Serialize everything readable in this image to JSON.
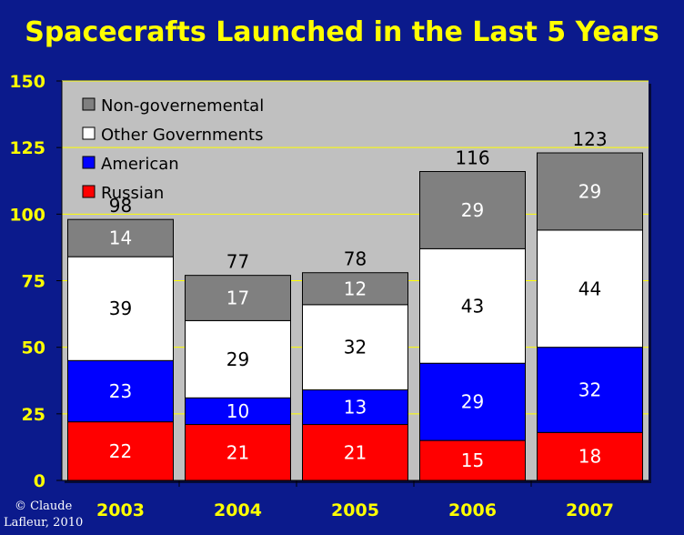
{
  "chart_data": {
    "type": "bar",
    "stacked": true,
    "title": "Spacecrafts Launched in the Last 5 Years",
    "categories": [
      "2003",
      "2004",
      "2005",
      "2006",
      "2007"
    ],
    "series": [
      {
        "name": "Russian",
        "color": "#ff0000",
        "values": [
          22,
          21,
          21,
          15,
          18
        ]
      },
      {
        "name": "American",
        "color": "#0000ff",
        "values": [
          23,
          10,
          13,
          29,
          32
        ]
      },
      {
        "name": "Other Governments",
        "color": "#ffffff",
        "values": [
          39,
          29,
          32,
          43,
          44
        ]
      },
      {
        "name": "Non-governemental",
        "color": "#808080",
        "values": [
          14,
          17,
          12,
          29,
          29
        ]
      }
    ],
    "totals": [
      98,
      77,
      78,
      116,
      123
    ],
    "ylim": [
      0,
      150
    ],
    "yticks": [
      0,
      25,
      50,
      75,
      100,
      125,
      150
    ],
    "grid": true,
    "legend_position": "top-left"
  },
  "colors": {
    "background": "#0b1a8c",
    "plot_area": "#c0c0c0",
    "title": "#ffff00",
    "axis_labels": "#ffff00",
    "gridline": "#ffff00"
  },
  "credit": {
    "line1": "© Claude",
    "line2": "Lafleur, 2010"
  }
}
